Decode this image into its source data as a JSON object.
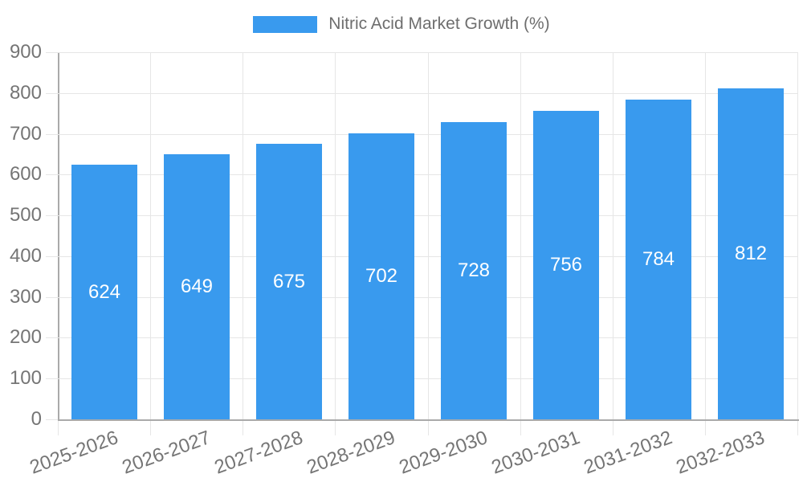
{
  "legend": {
    "label": "Nitric Acid Market Growth (%)"
  },
  "chart_data": {
    "type": "bar",
    "title": "",
    "xlabel": "",
    "ylabel": "",
    "categories": [
      "2025-2026",
      "2026-2027",
      "2027-2028",
      "2028-2029",
      "2029-2030",
      "2030-2031",
      "2031-2032",
      "2032-2033"
    ],
    "values": [
      624,
      649,
      675,
      702,
      728,
      756,
      784,
      812
    ],
    "series_name": "Nitric Acid Market Growth (%)",
    "ylim": [
      0,
      900
    ],
    "ytick_step": 100,
    "grid": true,
    "legend_position": "top",
    "xtick_rotation_deg": -20,
    "bar_color": "#399AEE",
    "value_label_color": "#FFFFFF",
    "value_label_position": "inside-center"
  },
  "colors": {
    "background": "#FFFFFF",
    "axis": "#AAAAAA",
    "grid": "#E6E6E6",
    "tick_label": "#757575",
    "legend_text": "#6E6E6E"
  }
}
